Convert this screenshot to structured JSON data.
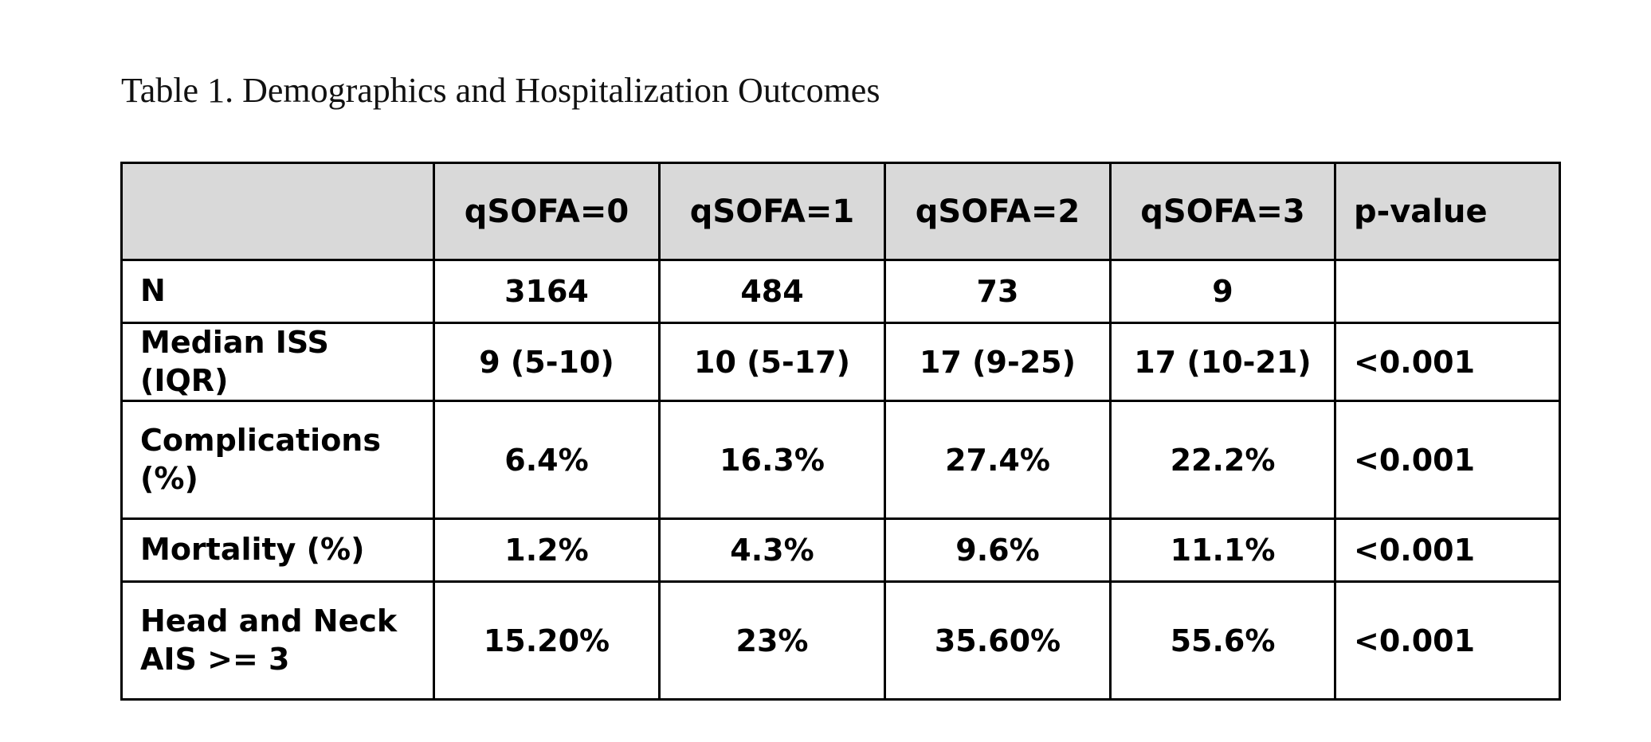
{
  "caption": "Table 1. Demographics and Hospitalization Outcomes",
  "table": {
    "headers": [
      "",
      "qSOFA=0",
      "qSOFA=1",
      "qSOFA=2",
      "qSOFA=3",
      "p-value"
    ],
    "rows": [
      {
        "label_lines": [
          "N"
        ],
        "cells": [
          "3164",
          "484",
          "73",
          "9",
          ""
        ]
      },
      {
        "label_lines": [
          "Median ISS (IQR)"
        ],
        "cells": [
          "9 (5-10)",
          "10 (5-17)",
          "17 (9-25)",
          "17 (10-21)",
          "<0.001"
        ]
      },
      {
        "label_lines": [
          "Complications",
          "(%)"
        ],
        "cells": [
          "6.4%",
          "16.3%",
          "27.4%",
          "22.2%",
          "<0.001"
        ]
      },
      {
        "label_lines": [
          "Mortality (%)"
        ],
        "cells": [
          "1.2%",
          "4.3%",
          "9.6%",
          "11.1%",
          "<0.001"
        ]
      },
      {
        "label_lines": [
          "Head and Neck",
          "AIS >= 3"
        ],
        "cells": [
          "15.20%",
          "23%",
          "35.60%",
          "55.6%",
          "<0.001"
        ]
      }
    ]
  }
}
